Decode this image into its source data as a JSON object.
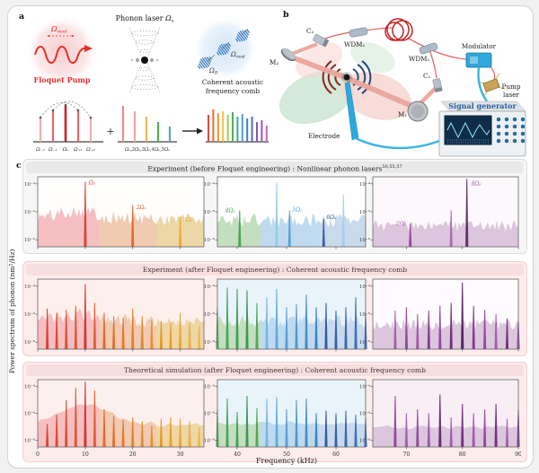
{
  "figure": {
    "panel_labels": {
      "a": "a",
      "b": "b",
      "c": "c"
    }
  },
  "panel_a": {
    "pump": {
      "omega": "Ω",
      "omega_sub": "mod",
      "title": "Floquet Pump"
    },
    "phonon_laser": {
      "text": "Phonon laser ",
      "omega": "Ω",
      "omega_sub": "s"
    },
    "comb_art": {
      "omega_r": "Ω",
      "omega_r_sub": "R",
      "omega_mod": "Ω",
      "omega_mod_sub": "mod",
      "caption_line1": "Coherent acoustic",
      "caption_line2": "frequency comb"
    },
    "spectral_schematic": {
      "pump_comb_labels": [
        "Ω₋₂",
        "Ω₋₁",
        "Ωₛ",
        "Ω₊₁",
        "Ω₊₂"
      ],
      "harmonic_comb_labels": "Ωₛ,2Ωₛ,3Ωₛ,4Ωₛ,5Ωₛ",
      "plus_sign": "+"
    }
  },
  "panel_b": {
    "labels": {
      "m2": "M₂",
      "c2": "C₂",
      "wdm2": "WDM₂",
      "wdm1": "WDM₁",
      "modulator": "Modulator",
      "c1": "C₁",
      "m1": "M₁",
      "pump_laser_line1": "Pump",
      "pump_laser_line2": "laser",
      "electrode": "Electrode",
      "signal_generator": "Signal generator"
    },
    "accent_colors": {
      "fiber_red": "#cc2222",
      "cable_blue": "#3ab4e4",
      "instrument_blue": "#2fa7d9"
    }
  },
  "chart_data": {
    "type": "line",
    "xlabel": "Frequency (kHz)",
    "ylabel": "Power spectrum of phonon (nm²/Hz)",
    "ylog_ticks": [
      "10⁻⁴",
      "10⁻⁶",
      "10⁻⁸"
    ],
    "peak_format": [
      "x_kHz",
      "height_norm",
      "color",
      "label",
      "label_color",
      "label_dx",
      "label_dy"
    ],
    "rows": [
      {
        "title": "Experiment (before Floquet engineering) : Nonlinear phonon lasers",
        "refs": "50,55,57",
        "panels": [
          {
            "xlim": [
              0,
              35
            ],
            "xticks": [
              0,
              10,
              20,
              30
            ],
            "bg": "#fffefd",
            "noise": {
              "base": 0.4,
              "amp": 0.1,
              "smooth": 0,
              "hump": {
                "x": 8,
                "w": 4,
                "h": 0.12
              },
              "segs": [
                [
                  0,
                  13,
                  "#f5bfc2"
                ],
                [
                  13,
                  25,
                  "#f0cab1"
                ],
                [
                  25,
                  35,
                  "#ecd7a6"
                ]
              ]
            },
            "peaks": [
              [
                10,
                0.93,
                "#d93a2b",
                "Ωₛ",
                "#d93a2b",
                4,
                0
              ],
              [
                20,
                0.6,
                "#e2601f",
                "2Ωₛ",
                "#e2601f",
                4,
                2
              ],
              [
                30,
                0.42,
                "#eda62b",
                "3Ωₛ",
                "#eda62b",
                3,
                2
              ]
            ]
          },
          {
            "xlim": [
              36,
              66
            ],
            "xticks": [
              40,
              50,
              60
            ],
            "bg": "#fdfefd",
            "noise": {
              "base": 0.38,
              "amp": 0.1,
              "smooth": 0,
              "segs": [
                [
                  36,
                  45,
                  "#c4dec0"
                ],
                [
                  45,
                  57,
                  "#bfdaee"
                ],
                [
                  57,
                  66,
                  "#c8daec"
                ]
              ]
            },
            "peaks": [
              [
                40.5,
                0.52,
                "#3fa04a",
                "4Ωₛ",
                "#3fa04a",
                -16,
                -1
              ],
              [
                48,
                0.92,
                "#8fcbe8"
              ],
              [
                50.6,
                0.52,
                "#4f9ed6",
                "5Ωₛ",
                "#4f9ed6",
                3,
                -2
              ],
              [
                57.5,
                0.4,
                "#2b55a8",
                "6Ωₛ",
                "#2b55a8",
                3,
                -3
              ],
              [
                61.5,
                0.75,
                "#9fd0e8"
              ]
            ]
          },
          {
            "xlim": [
              64,
              90
            ],
            "xticks": [
              70,
              80,
              90
            ],
            "bg": "#fcf8fb",
            "noise": {
              "base": 0.3,
              "amp": 0.08,
              "smooth": 0,
              "segs": [
                [
                  64,
                  90,
                  "#dbc6dd"
                ]
              ]
            },
            "peaks": [
              [
                70.7,
                0.33,
                "#8f3d96",
                "7Ωₛ",
                "#a455aa",
                -16,
                -1
              ],
              [
                78,
                0.52,
                "#a863ae"
              ],
              [
                80.8,
                0.97,
                "#5a2161",
                "8Ωₛ",
                "#a455aa",
                5,
                4
              ]
            ]
          }
        ]
      },
      {
        "title": "Experiment (after Floquet engineering) : Coherent acoustic frequency comb",
        "refs": "",
        "panels": [
          {
            "xlim": [
              0,
              35
            ],
            "xticks": [
              0,
              10,
              20,
              30
            ],
            "bg": "#fdf0ec",
            "noise": {
              "base": 0.4,
              "amp": 0.09,
              "smooth": 0,
              "hump": {
                "x": 9,
                "w": 5,
                "h": 0.08
              },
              "segs": [
                [
                  0,
                  13,
                  "#f5bfc2"
                ],
                [
                  13,
                  25,
                  "#f0cab1"
                ],
                [
                  25,
                  35,
                  "#ecd7a6"
                ]
              ]
            },
            "peaks": [
              [
                2,
                0.58,
                "#d6372b"
              ],
              [
                4,
                0.52,
                "#d83f29"
              ],
              [
                6,
                0.56,
                "#da4727"
              ],
              [
                8,
                0.62,
                "#dc4f26"
              ],
              [
                10,
                0.93,
                "#cf2b24"
              ],
              [
                12,
                0.66,
                "#e05724"
              ],
              [
                14,
                0.52,
                "#e25f22"
              ],
              [
                16,
                0.47,
                "#e46721"
              ],
              [
                18,
                0.45,
                "#e66f1f"
              ],
              [
                20,
                0.58,
                "#e8771e"
              ],
              [
                22,
                0.47,
                "#ea7f1c"
              ],
              [
                24,
                0.42,
                "#ec871b"
              ],
              [
                26,
                0.4,
                "#ee8f19"
              ],
              [
                28,
                0.38,
                "#f0971e"
              ],
              [
                30,
                0.52,
                "#f1a026"
              ],
              [
                32,
                0.4,
                "#f2a92e"
              ],
              [
                34,
                0.33,
                "#f3b236"
              ]
            ]
          },
          {
            "xlim": [
              36,
              66
            ],
            "xticks": [
              40,
              50,
              60
            ],
            "bg": "#e9f3fa",
            "noise": {
              "base": 0.4,
              "amp": 0.09,
              "smooth": 0,
              "segs": [
                [
                  36,
                  45,
                  "#c4dec0"
                ],
                [
                  45,
                  57,
                  "#bfdaee"
                ],
                [
                  57,
                  66,
                  "#c8daec"
                ]
              ]
            },
            "peaks": [
              [
                36,
                0.6,
                "#4aa94f"
              ],
              [
                38,
                0.88,
                "#3fa04a"
              ],
              [
                40,
                0.86,
                "#37994a"
              ],
              [
                42,
                0.84,
                "#2f9149"
              ],
              [
                44,
                0.66,
                "#45a54d"
              ],
              [
                46,
                0.74,
                "#6fb4e2"
              ],
              [
                48,
                0.86,
                "#57a8dc"
              ],
              [
                50,
                0.6,
                "#4a9ed6"
              ],
              [
                52,
                0.64,
                "#3f93cf"
              ],
              [
                54,
                0.78,
                "#3787c8"
              ],
              [
                56,
                0.6,
                "#2f7bc0"
              ],
              [
                58,
                0.66,
                "#27509f"
              ],
              [
                60,
                0.55,
                "#2a57a6"
              ],
              [
                62,
                0.6,
                "#2d5ead"
              ],
              [
                64,
                0.74,
                "#3065b4"
              ],
              [
                66,
                0.5,
                "#3366bb"
              ]
            ]
          },
          {
            "xlim": [
              64,
              90
            ],
            "xticks": [
              70,
              80,
              90
            ],
            "bg": "#fdfbfd",
            "noise": {
              "base": 0.35,
              "amp": 0.08,
              "smooth": 0,
              "segs": [
                [
                  64,
                  90,
                  "#dbc6dd"
                ]
              ]
            },
            "peaks": [
              [
                68,
                0.55,
                "#a055a8"
              ],
              [
                70,
                0.6,
                "#8f3d96"
              ],
              [
                72,
                0.5,
                "#9c4ba5"
              ],
              [
                74,
                0.55,
                "#7b2f84"
              ],
              [
                76,
                0.62,
                "#8f3d96"
              ],
              [
                78,
                0.66,
                "#6a2573"
              ],
              [
                80,
                0.95,
                "#4a1852"
              ],
              [
                82,
                0.62,
                "#7b2f84"
              ],
              [
                84,
                0.56,
                "#8f3d96"
              ],
              [
                86,
                0.5,
                "#a055a8"
              ],
              [
                88,
                0.44,
                "#6a2573"
              ],
              [
                90,
                0.4,
                "#8f3d96"
              ]
            ]
          }
        ]
      },
      {
        "title": "Theoretical simulation (after Floquet engineering) : Coherent acoustic frequency comb",
        "refs": "",
        "panels": [
          {
            "xlim": [
              0,
              35
            ],
            "xticks": [
              0,
              10,
              20,
              30
            ],
            "bg": "#fcf0ee",
            "noise": {
              "base": 0.33,
              "amp": 0.05,
              "smooth": 2,
              "hump": {
                "x": 10,
                "w": 5,
                "h": 0.3
              },
              "segs": [
                [
                  0,
                  13,
                  "#f5bfc2"
                ],
                [
                  13,
                  25,
                  "#f0cab1"
                ],
                [
                  25,
                  35,
                  "#ecd7a6"
                ]
              ]
            },
            "peaks": [
              [
                2,
                0.34,
                "#d6372b"
              ],
              [
                4,
                0.48,
                "#d83f29"
              ],
              [
                6,
                0.7,
                "#da4727"
              ],
              [
                8,
                0.88,
                "#dc4f26"
              ],
              [
                10,
                0.97,
                "#cf2b24"
              ],
              [
                12,
                0.84,
                "#e05724"
              ],
              [
                14,
                0.56,
                "#e25f22"
              ],
              [
                16,
                0.46,
                "#e46721"
              ],
              [
                18,
                0.4,
                "#e66f1f"
              ],
              [
                20,
                0.44,
                "#e8771e"
              ],
              [
                22,
                0.38,
                "#ea7f1c"
              ],
              [
                24,
                0.32,
                "#ec871b"
              ],
              [
                26,
                0.42,
                "#ee8f19"
              ],
              [
                28,
                0.44,
                "#f0971e"
              ],
              [
                30,
                0.42,
                "#f1a026"
              ],
              [
                32,
                0.38,
                "#f2a92e"
              ],
              [
                34,
                0.3,
                "#f3b236"
              ]
            ]
          },
          {
            "xlim": [
              36,
              66
            ],
            "xticks": [
              40,
              50,
              60
            ],
            "bg": "#e9f3fa",
            "noise": {
              "base": 0.34,
              "amp": 0.05,
              "smooth": 2,
              "segs": [
                [
                  36,
                  45,
                  "#c4dec0"
                ],
                [
                  45,
                  57,
                  "#bfdaee"
                ],
                [
                  57,
                  66,
                  "#c8daec"
                ]
              ]
            },
            "peaks": [
              [
                36,
                0.56,
                "#4aa94f"
              ],
              [
                38,
                0.72,
                "#3fa04a"
              ],
              [
                40,
                0.52,
                "#37994a"
              ],
              [
                42,
                0.76,
                "#2f9149"
              ],
              [
                44,
                0.58,
                "#45a54d"
              ],
              [
                46,
                0.72,
                "#6fb4e2"
              ],
              [
                48,
                0.74,
                "#57a8dc"
              ],
              [
                50,
                0.56,
                "#4a9ed6"
              ],
              [
                52,
                0.7,
                "#3f93cf"
              ],
              [
                54,
                0.72,
                "#3787c8"
              ],
              [
                56,
                0.5,
                "#2f7bc0"
              ],
              [
                58,
                0.54,
                "#27509f"
              ],
              [
                60,
                0.5,
                "#2a57a6"
              ],
              [
                62,
                0.54,
                "#2d5ead"
              ],
              [
                64,
                0.48,
                "#3065b4"
              ],
              [
                66,
                0.44,
                "#3366bb"
              ]
            ]
          },
          {
            "xlim": [
              64,
              90
            ],
            "xticks": [
              70,
              80,
              90
            ],
            "bg": "#f8eef4",
            "noise": {
              "base": 0.3,
              "amp": 0.05,
              "smooth": 2,
              "segs": [
                [
                  64,
                  90,
                  "#dbc6dd"
                ]
              ]
            },
            "peaks": [
              [
                68,
                0.76,
                "#8f3d96"
              ],
              [
                70,
                0.5,
                "#a055a8"
              ],
              [
                72,
                0.56,
                "#8f3d96"
              ],
              [
                74,
                0.5,
                "#9c4ba5"
              ],
              [
                76,
                0.78,
                "#5a2161"
              ],
              [
                78,
                0.44,
                "#a055a8"
              ],
              [
                80,
                0.64,
                "#6a2573"
              ],
              [
                82,
                0.5,
                "#9c4ba5"
              ],
              [
                84,
                0.56,
                "#8f3d96"
              ],
              [
                86,
                0.64,
                "#6a2573"
              ],
              [
                88,
                0.42,
                "#a055a8"
              ],
              [
                90,
                0.56,
                "#7b2f84"
              ]
            ]
          }
        ]
      }
    ]
  }
}
